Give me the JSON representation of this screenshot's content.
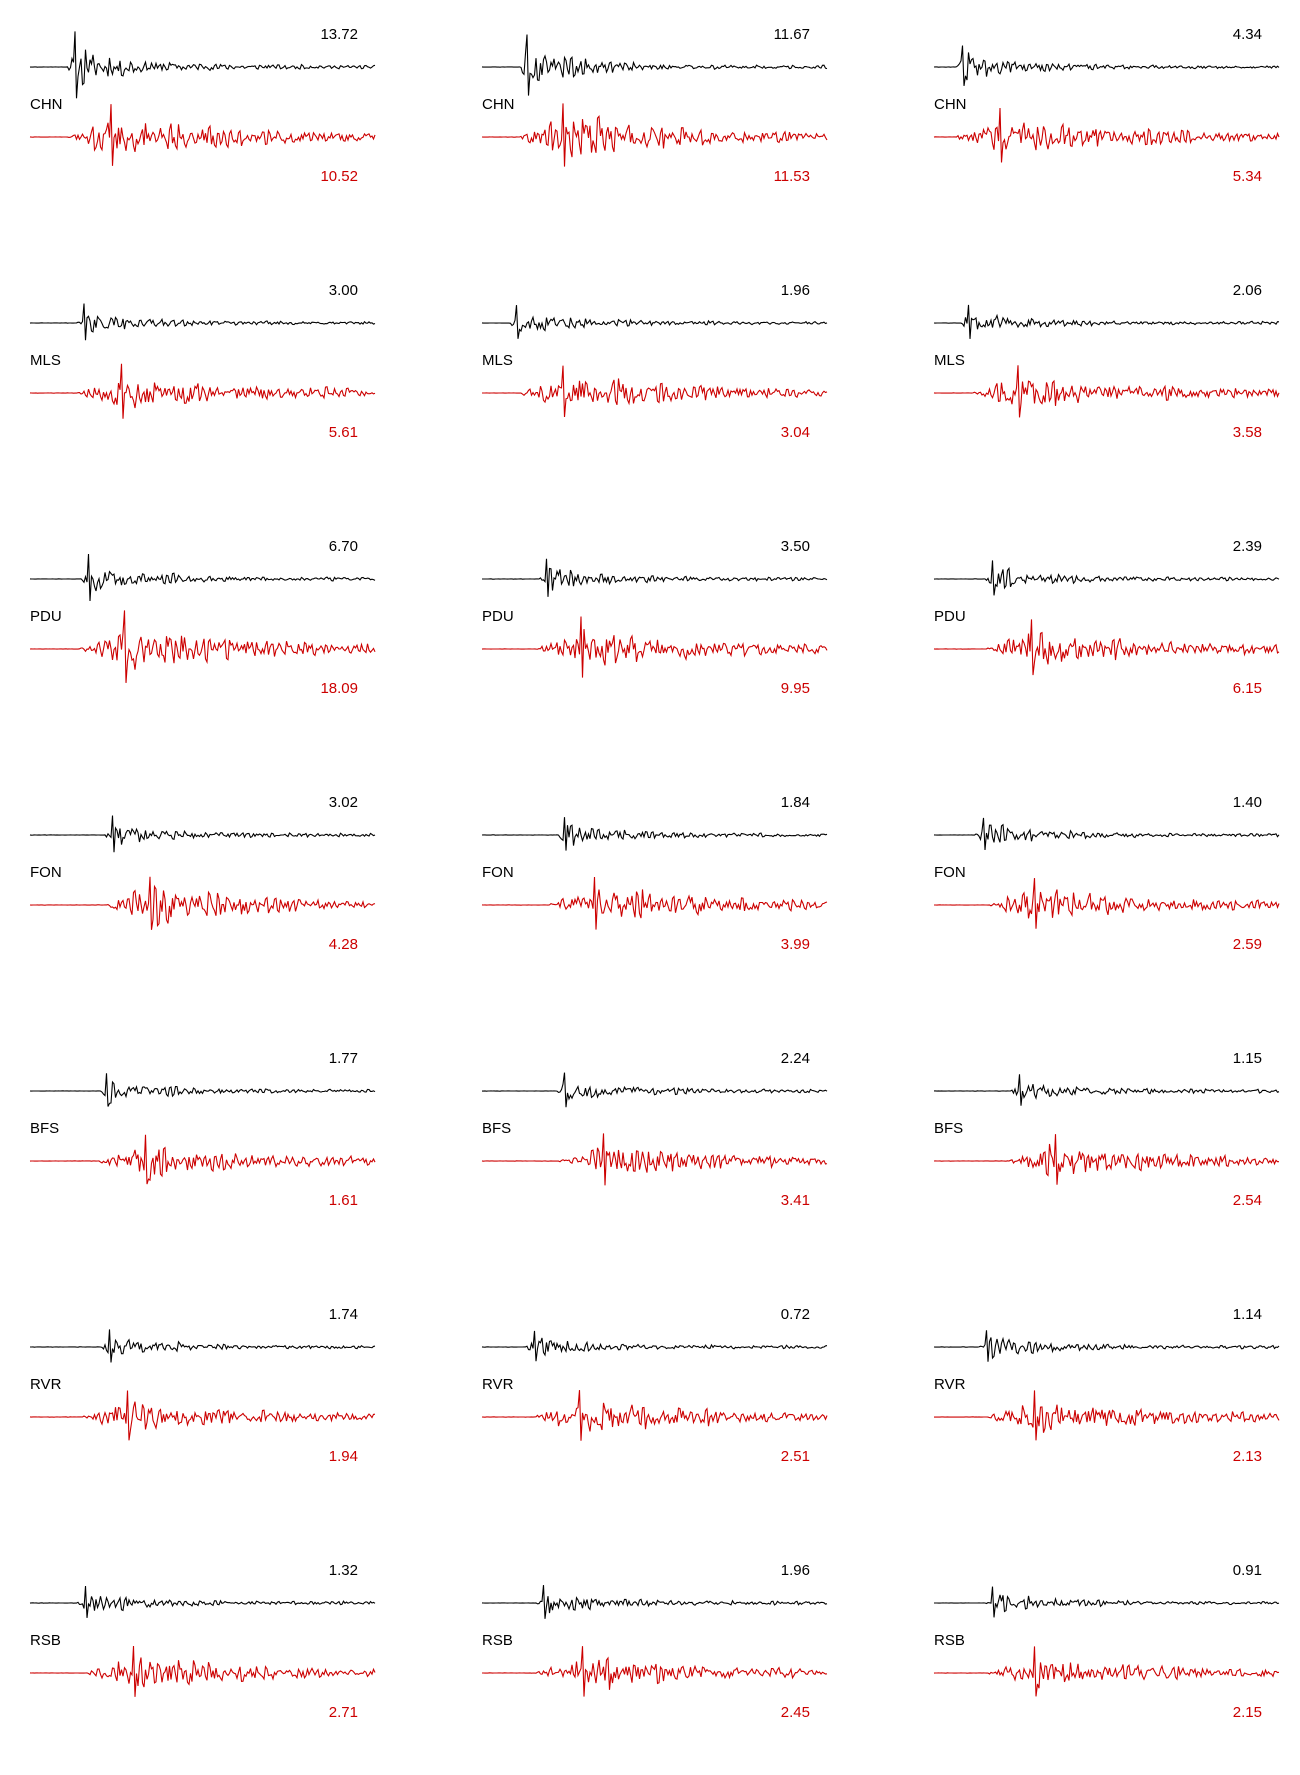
{
  "colors": {
    "observed": "#000000",
    "synthetic": "#cc0000",
    "background": "#ffffff"
  },
  "chart_data": {
    "type": "line",
    "description_rows": "station rows, three columns each; each panel has an upper black trace and a lower red trace with peak amplitude labels",
    "rows": [
      {
        "station": "CHN",
        "panels": [
          {
            "top_amp": "13.72",
            "bottom_amp": "10.52"
          },
          {
            "top_amp": "11.67",
            "bottom_amp": "11.53"
          },
          {
            "top_amp": "4.34",
            "bottom_amp": "5.34"
          }
        ]
      },
      {
        "station": "MLS",
        "panels": [
          {
            "top_amp": "3.00",
            "bottom_amp": "5.61"
          },
          {
            "top_amp": "1.96",
            "bottom_amp": "3.04"
          },
          {
            "top_amp": "2.06",
            "bottom_amp": "3.58"
          }
        ]
      },
      {
        "station": "PDU",
        "panels": [
          {
            "top_amp": "6.70",
            "bottom_amp": "18.09"
          },
          {
            "top_amp": "3.50",
            "bottom_amp": "9.95"
          },
          {
            "top_amp": "2.39",
            "bottom_amp": "6.15"
          }
        ]
      },
      {
        "station": "FON",
        "panels": [
          {
            "top_amp": "3.02",
            "bottom_amp": "4.28"
          },
          {
            "top_amp": "1.84",
            "bottom_amp": "3.99"
          },
          {
            "top_amp": "1.40",
            "bottom_amp": "2.59"
          }
        ]
      },
      {
        "station": "BFS",
        "panels": [
          {
            "top_amp": "1.77",
            "bottom_amp": "1.61"
          },
          {
            "top_amp": "2.24",
            "bottom_amp": "3.41"
          },
          {
            "top_amp": "1.15",
            "bottom_amp": "2.54"
          }
        ]
      },
      {
        "station": "RVR",
        "panels": [
          {
            "top_amp": "1.74",
            "bottom_amp": "1.94"
          },
          {
            "top_amp": "0.72",
            "bottom_amp": "2.51"
          },
          {
            "top_amp": "1.14",
            "bottom_amp": "2.13"
          }
        ]
      },
      {
        "station": "RSB",
        "panels": [
          {
            "top_amp": "1.32",
            "bottom_amp": "2.71"
          },
          {
            "top_amp": "1.96",
            "bottom_amp": "2.45"
          },
          {
            "top_amp": "0.91",
            "bottom_amp": "2.15"
          }
        ]
      }
    ]
  }
}
